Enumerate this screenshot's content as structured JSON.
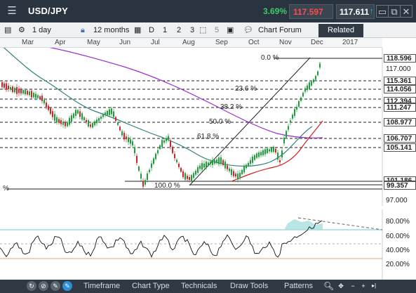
{
  "window": {
    "symbol": "USD/JPY",
    "change_pct": "3.69%",
    "sell_price": "117.597",
    "buy_price": "117.611"
  },
  "toolbar": {
    "interval": "1 day",
    "range": "12 months",
    "draw_d": "D",
    "draw_1": "1",
    "draw_2": "2",
    "draw_3": "3",
    "draw_5": "5",
    "forum": "Chart Forum",
    "related": "Related"
  },
  "months": [
    "Mar",
    "Apr",
    "May",
    "Jun",
    "Jul",
    "Aug",
    "Sep",
    "Oct",
    "Nov",
    "Dec",
    "2017"
  ],
  "price_labels": [
    "118.596",
    "117.000",
    "115.361",
    "114.056",
    "112.394",
    "111.247",
    "108.977",
    "106.707",
    "105.141",
    "101.186",
    "99.357",
    "97.000"
  ],
  "fib_labels": [
    "0.0 %",
    "23.6 %",
    "38.2 %",
    "50.0 %",
    "61.8 %",
    "100.0 %"
  ],
  "rsi_labels": [
    "80.00%",
    "60.00%",
    "40.00%",
    "20.00%"
  ],
  "left_label": "%",
  "bottombar": {
    "timeframe": "Timeframe",
    "chart_type": "Chart Type",
    "technicals": "Technicals",
    "draw_tools": "Draw Tools",
    "patterns": "Patterns"
  },
  "colors": {
    "ma_fast": "#d21f1f",
    "ma_mid": "#2e7f7a",
    "ma_slow": "#9b2fd0",
    "candle_up": "#1d9e3a",
    "candle_down": "#c62828",
    "rsi_line": "#111111"
  },
  "icons": [
    "menu-icon",
    "calendar-icon",
    "settings-icon",
    "lock-icon",
    "calendar-icon",
    "drawing-icon",
    "chat-icon",
    "minimize-icon",
    "maximize-icon",
    "close-icon",
    "zoom-icon",
    "pan-icon"
  ]
}
